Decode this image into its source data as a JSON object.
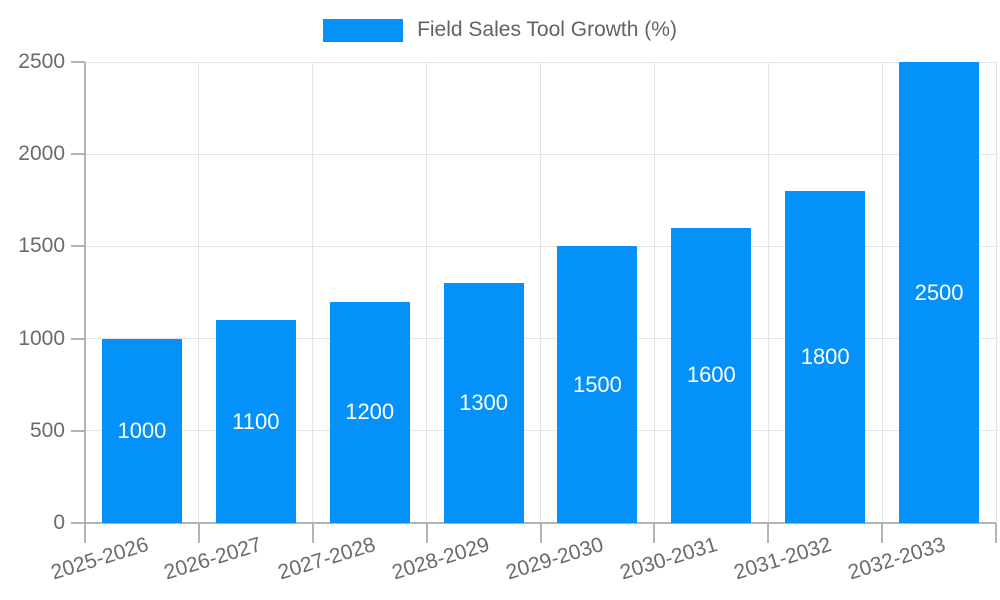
{
  "chart_data": {
    "type": "bar",
    "title": "Field Sales Tool Growth (%)",
    "legend": {
      "label": "Field Sales Tool Growth (%)",
      "position": "top"
    },
    "categories": [
      "2025-2026",
      "2026-2027",
      "2027-2028",
      "2028-2029",
      "2029-2030",
      "2030-2031",
      "2031-2032",
      "2032-2033"
    ],
    "values": [
      1000,
      1100,
      1200,
      1300,
      1500,
      1600,
      1800,
      2500
    ],
    "bar_value_labels": [
      "1000",
      "1100",
      "1200",
      "1300",
      "1500",
      "1600",
      "1800",
      "2500"
    ],
    "xlabel": "",
    "ylabel": "",
    "ylim": [
      0,
      2500
    ],
    "yticks": [
      0,
      500,
      1000,
      1500,
      2000,
      2500
    ],
    "grid": true,
    "x_tick_rotation_deg": -17,
    "bar_labels_inside_centered": true,
    "colors": {
      "bar": "#0591fa",
      "bar_label": "#ffffff",
      "grid": "#e4e4e4",
      "axis": "#b3b3b3",
      "tick_text": "#6b6b6b",
      "legend_text": "#636363",
      "background": "#ffffff"
    }
  }
}
